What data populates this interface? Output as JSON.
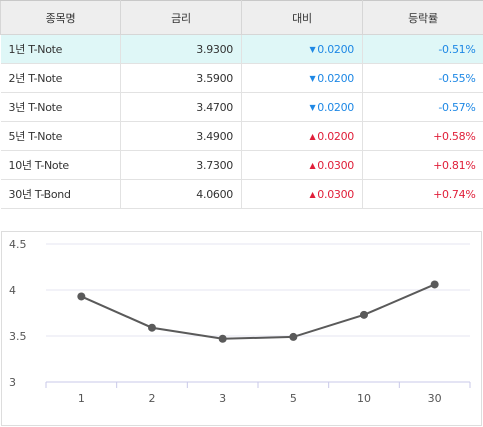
{
  "table": {
    "headers": [
      "종목명",
      "금리",
      "대비",
      "등락률"
    ],
    "rows": [
      {
        "name": "1년 T-Note",
        "rate": "3.9300",
        "dir": "down",
        "change": "0.0200",
        "pct": "-0.51%",
        "selected": true
      },
      {
        "name": "2년 T-Note",
        "rate": "3.5900",
        "dir": "down",
        "change": "0.0200",
        "pct": "-0.55%",
        "selected": false
      },
      {
        "name": "3년 T-Note",
        "rate": "3.4700",
        "dir": "down",
        "change": "0.0200",
        "pct": "-0.57%",
        "selected": false
      },
      {
        "name": "5년 T-Note",
        "rate": "3.4900",
        "dir": "up",
        "change": "0.0200",
        "pct": "+0.58%",
        "selected": false
      },
      {
        "name": "10년 T-Note",
        "rate": "3.7300",
        "dir": "up",
        "change": "0.0300",
        "pct": "+0.81%",
        "selected": false
      },
      {
        "name": "30년 T-Bond",
        "rate": "4.0600",
        "dir": "up",
        "change": "0.0300",
        "pct": "+0.74%",
        "selected": false
      }
    ],
    "icons": {
      "down": "triangle-down-icon",
      "up": "triangle-up-icon"
    },
    "colors": {
      "down": "#1e88e5",
      "up": "#e0203a",
      "selected_row": "#dff7f7",
      "header_bg": "#eeeeee"
    }
  },
  "chart_data": {
    "type": "line",
    "categories": [
      "1",
      "2",
      "3",
      "5",
      "10",
      "30"
    ],
    "values": [
      3.93,
      3.59,
      3.47,
      3.49,
      3.73,
      4.06
    ],
    "ylim": [
      3,
      4.5
    ],
    "yticks": [
      "3",
      "3.5",
      "4",
      "4.5"
    ],
    "grid": true,
    "line_color": "#5a5a5a",
    "grid_color": "#e6e6f0",
    "axis_color": "#c9c9e8"
  }
}
